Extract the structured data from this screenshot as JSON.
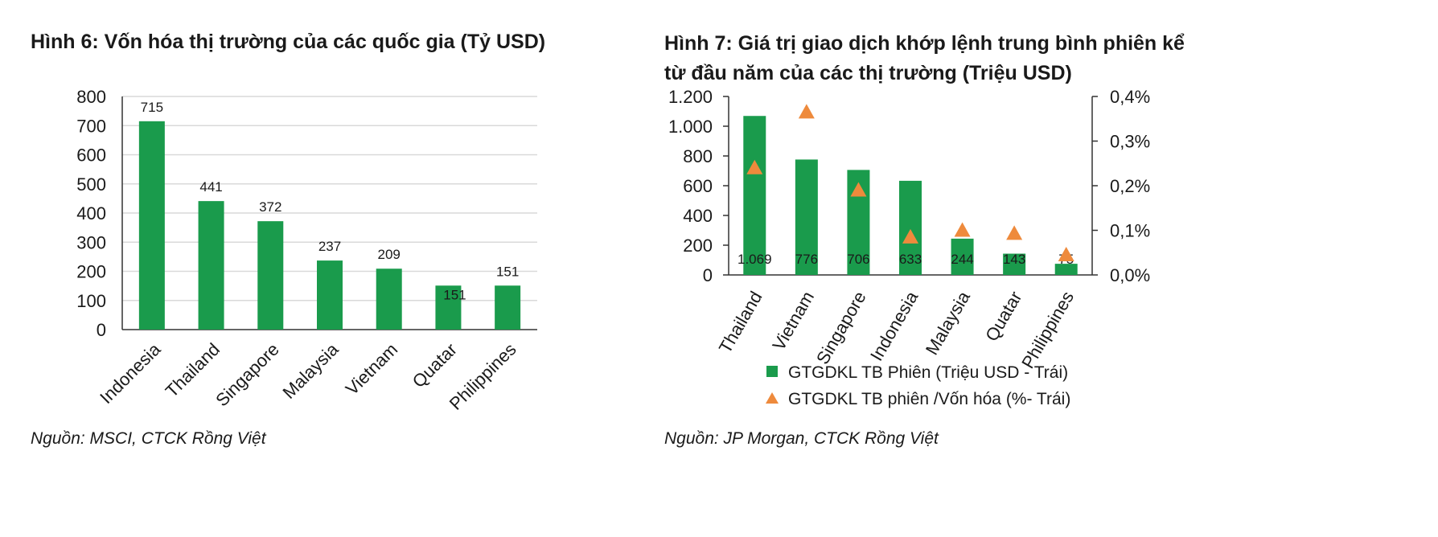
{
  "colors": {
    "bar": "#1a9b4c",
    "triangle": "#ee8a3c",
    "grid": "#d9d9d9",
    "axis": "#333333"
  },
  "chart_data": [
    {
      "type": "bar",
      "title": "Hình 6: Vốn hóa thị trường của các quốc gia (Tỷ USD)",
      "source": "Nguồn: MSCI, CTCK Rồng Việt",
      "categories": [
        "Indonesia",
        "Thailand",
        "Singapore",
        "Malaysia",
        "Vietnam",
        "Quatar",
        "Philippines"
      ],
      "values": [
        715,
        441,
        372,
        237,
        209,
        151,
        151
      ],
      "data_labels": [
        "715",
        "441",
        "372",
        "237",
        "209",
        "151",
        "151"
      ],
      "ylim": [
        0,
        800
      ],
      "yticks": [
        0,
        100,
        200,
        300,
        400,
        500,
        600,
        700,
        800
      ],
      "ytick_labels": [
        "0",
        "100",
        "200",
        "300",
        "400",
        "500",
        "600",
        "700",
        "800"
      ],
      "grid": true
    },
    {
      "type": "bar",
      "title_line1": "Hình 7: Giá trị giao dịch khớp lệnh trung bình phiên kể",
      "title_line2": "từ đầu năm của các thị trường (Triệu USD)",
      "source": "Nguồn: JP Morgan, CTCK Rồng Việt",
      "categories": [
        "Thailand",
        "Vietnam",
        "Singapore",
        "Indonesia",
        "Malaysia",
        "Quatar",
        "Philippines"
      ],
      "series": [
        {
          "name": "GTGDKL TB Phiên (Triệu USD - Trái)",
          "axis": "left",
          "marker": "bar",
          "values": [
            1069,
            776,
            706,
            633,
            244,
            143,
            75
          ],
          "data_labels": [
            "1.069",
            "776",
            "706",
            "633",
            "244",
            "143",
            "75"
          ]
        },
        {
          "name": "GTGDKL TB phiên /Vốn hóa (%- Trái)",
          "axis": "right",
          "marker": "triangle",
          "values": [
            0.24,
            0.365,
            0.19,
            0.085,
            0.1,
            0.093,
            0.045
          ]
        }
      ],
      "ylim": [
        0,
        1200
      ],
      "yticks": [
        0,
        200,
        400,
        600,
        800,
        1000,
        1200
      ],
      "ytick_labels": [
        "0",
        "200",
        "400",
        "600",
        "800",
        "1.000",
        "1.200"
      ],
      "y2lim": [
        0,
        0.4
      ],
      "y2ticks": [
        0,
        0.1,
        0.2,
        0.3,
        0.4
      ],
      "y2tick_labels": [
        "0,0%",
        "0,1%",
        "0,2%",
        "0,3%",
        "0,4%"
      ],
      "legend": "bottom",
      "grid": false
    }
  ]
}
